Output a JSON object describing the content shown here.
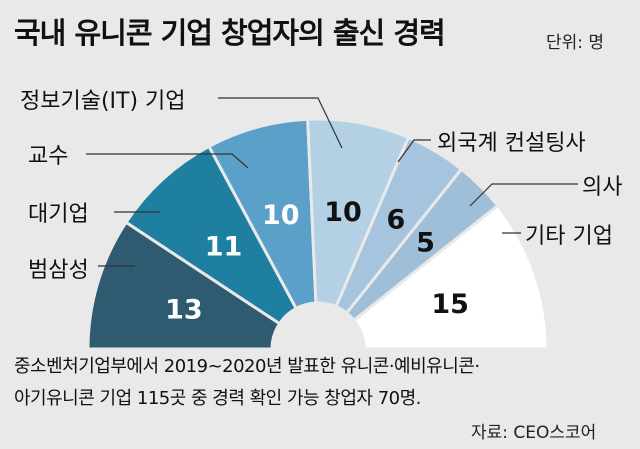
{
  "title": "국내 유니콘 기업 창업자의 출신 경력",
  "unit_label": "단위: 명",
  "chart_data": {
    "type": "pie",
    "title": "국내 유니콘 기업 창업자의 출신 경력",
    "unit": "명",
    "categories": [
      "범삼성",
      "대기업",
      "교수",
      "정보기술(IT) 기업",
      "외국계 컨설팅사",
      "의사",
      "기타 기업"
    ],
    "values": [
      13,
      11,
      10,
      10,
      6,
      5,
      15
    ],
    "colors": [
      "#2f5b70",
      "#1f7fa1",
      "#5aa0c8",
      "#b3d0e5",
      "#a6c4dd",
      "#9fbfd9",
      "#ffffff"
    ],
    "value_colors": [
      "#ffffff",
      "#ffffff",
      "#ffffff",
      "#111111",
      "#111111",
      "#111111",
      "#111111"
    ]
  },
  "notes": [
    "중소벤처기업부에서 2019~2020년 발표한 유니콘·예비유니콘·",
    "아기유니콘 기업 115곳 중 경력 확인 가능 창업자 70명."
  ],
  "source": "자료: CEO스코어"
}
